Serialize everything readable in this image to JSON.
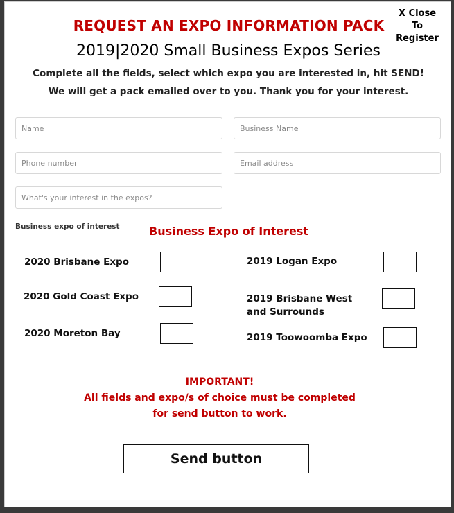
{
  "close": {
    "line1": "X Close",
    "line2": "To Register"
  },
  "header": {
    "request_title": "REQUEST AN EXPO INFORMATION PACK",
    "series_title": "2019|2020 Small Business Expos Series",
    "intro_line1": "Complete all the fields, select which expo you are interested in, hit SEND!",
    "intro_line2": "We will get a pack emailed over to you. Thank you for your interest."
  },
  "form": {
    "name_placeholder": "Name",
    "business_placeholder": "Business Name",
    "phone_placeholder": "Phone number",
    "email_placeholder": "Email address",
    "interest_placeholder": "What's your interest in the expos?",
    "small_label": "Business expo of interest",
    "section_title": "Business Expo of Interest"
  },
  "expos": {
    "left": [
      {
        "label": "2020 Brisbane Expo",
        "checked": false
      },
      {
        "label": "2020 Gold Coast Expo",
        "checked": false
      },
      {
        "label": "2020 Moreton Bay",
        "checked": false
      }
    ],
    "right": [
      {
        "label": "2019 Logan Expo",
        "checked": false
      },
      {
        "label_line1": "2019 Brisbane West",
        "label_line2": "and Surrounds",
        "checked": false
      },
      {
        "label": "2019 Toowoomba Expo",
        "checked": false
      }
    ]
  },
  "notice": {
    "line1": "IMPORTANT!",
    "line2": "All fields and expo/s of choice must be completed",
    "line3": "for send button to work."
  },
  "send_label": "Send button",
  "colors": {
    "accent_red": "#c00000",
    "backdrop": "#3a3a3a"
  }
}
